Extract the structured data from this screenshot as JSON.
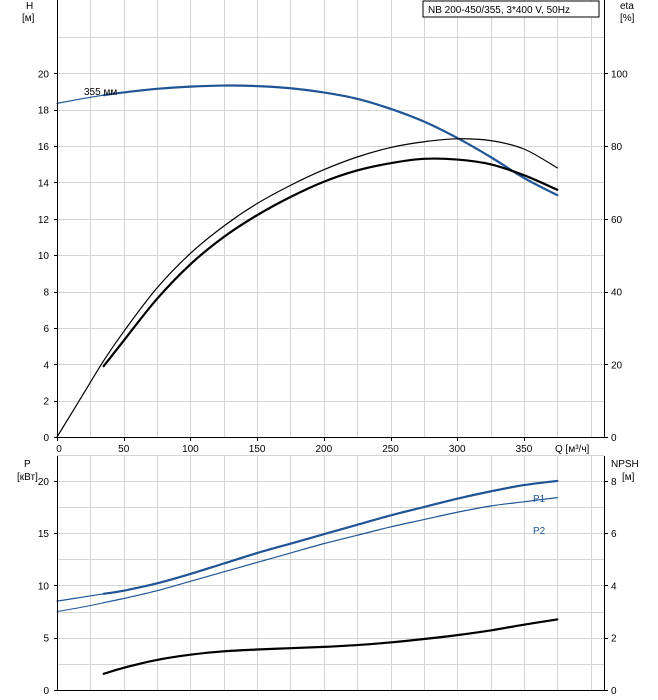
{
  "title_box": "NB 200-450/355, 3*400 V, 50Hz",
  "colors": {
    "blue": "#1f5596",
    "black": "#000000",
    "grid": "#d4d4d4"
  },
  "chart_data": [
    {
      "type": "line",
      "name": "head-efficiency",
      "ylabel_left": "H",
      "ylabel_left_unit": "[м]",
      "ylabel_right": "eta",
      "ylabel_right_unit": "[%]",
      "xlabel": "Q [м³/ч]",
      "xlim": [
        0,
        410
      ],
      "ylim": [
        0,
        22
      ],
      "y2lim": [
        0,
        110
      ],
      "xticks": [
        "0",
        "50",
        "100",
        "150",
        "200",
        "250",
        "300",
        "350"
      ],
      "xticks_values": [
        0,
        50,
        100,
        150,
        200,
        250,
        300,
        350
      ],
      "yticks_left": [
        "0",
        "2",
        "4",
        "6",
        "8",
        "10",
        "12",
        "14",
        "16",
        "18",
        "20"
      ],
      "yticks_left_values": [
        0,
        2,
        4,
        6,
        8,
        10,
        12,
        14,
        16,
        18,
        20
      ],
      "yticks_right": [
        "0",
        "20",
        "40",
        "60",
        "80",
        "100"
      ],
      "yticks_right_values": [
        0,
        20,
        40,
        60,
        80,
        100
      ],
      "annotation": "355 мм",
      "grid": true,
      "series": [
        {
          "name": "head-thin",
          "color": "#1f5596",
          "width": 1.2,
          "x": [
            0,
            20,
            35
          ],
          "y": [
            18.35,
            18.62,
            18.8
          ]
        },
        {
          "name": "head-355",
          "color": "#1f5596",
          "width": 2.2,
          "x": [
            35,
            50,
            75,
            100,
            125,
            150,
            175,
            200,
            225,
            250,
            275,
            300,
            325,
            350,
            375
          ],
          "y": [
            18.8,
            18.95,
            19.15,
            19.27,
            19.33,
            19.3,
            19.18,
            18.95,
            18.6,
            18.05,
            17.35,
            16.45,
            15.4,
            14.25,
            13.3
          ]
        },
        {
          "name": "eta-thin",
          "color": "#000000",
          "width": 1.2,
          "x": [
            0,
            20,
            35,
            50,
            75,
            100,
            125,
            150,
            175,
            200,
            225,
            250,
            275,
            300,
            325,
            350,
            375
          ],
          "y": [
            0,
            12,
            21,
            29,
            41,
            50.5,
            58,
            64.2,
            69.2,
            73.5,
            77,
            79.6,
            81.2,
            82,
            81.5,
            79.2,
            74
          ]
        },
        {
          "name": "eta-thick",
          "color": "#000000",
          "width": 2.2,
          "x": [
            35,
            50,
            75,
            100,
            125,
            150,
            175,
            200,
            225,
            250,
            275,
            300,
            325,
            350,
            375
          ],
          "y": [
            19.5,
            26.5,
            38,
            47.5,
            55,
            61,
            66,
            70.2,
            73.3,
            75.3,
            76.5,
            76.3,
            75,
            72,
            68
          ]
        }
      ]
    },
    {
      "type": "line",
      "name": "power-npsh",
      "ylabel_left": "P",
      "ylabel_left_unit": "[кВт]",
      "ylabel_right": "NPSH",
      "ylabel_right_unit": "[м]",
      "xlim": [
        0,
        410
      ],
      "ylim": [
        0,
        22
      ],
      "y2lim": [
        0,
        8.8
      ],
      "yticks_left": [
        "0",
        "5",
        "10",
        "15",
        "20"
      ],
      "yticks_left_values": [
        0,
        5,
        10,
        15,
        20
      ],
      "yticks_right": [
        "0",
        "2",
        "4",
        "6",
        "8"
      ],
      "yticks_right_values": [
        0,
        2,
        4,
        6,
        8
      ],
      "grid": true,
      "series": [
        {
          "name": "P1-thin",
          "color": "#1f5596",
          "width": 1.2,
          "x": [
            0,
            20,
            35
          ],
          "y": [
            8.5,
            8.9,
            9.2
          ]
        },
        {
          "name": "P1",
          "label": "P1",
          "color": "#1f5596",
          "width": 2.2,
          "x": [
            35,
            50,
            75,
            100,
            125,
            150,
            175,
            200,
            225,
            250,
            275,
            300,
            325,
            350,
            375
          ],
          "y": [
            9.2,
            9.5,
            10.2,
            11.1,
            12.1,
            13.1,
            14.0,
            14.9,
            15.8,
            16.7,
            17.5,
            18.3,
            19.0,
            19.6,
            20.0
          ]
        },
        {
          "name": "P2-thin",
          "color": "#1f5596",
          "width": 1.0,
          "x": [
            0,
            20,
            35
          ],
          "y": [
            7.5,
            7.95,
            8.35
          ]
        },
        {
          "name": "P2",
          "label": "P2",
          "color": "#1f5596",
          "width": 1.2,
          "x": [
            35,
            50,
            75,
            100,
            125,
            150,
            175,
            200,
            225,
            250,
            275,
            300,
            325,
            350,
            375
          ],
          "y": [
            8.35,
            8.75,
            9.5,
            10.4,
            11.3,
            12.2,
            13.1,
            14.0,
            14.8,
            15.6,
            16.3,
            17.0,
            17.6,
            18.0,
            18.4
          ]
        },
        {
          "name": "NPSH",
          "color": "#000000",
          "width": 2.2,
          "axis": "right",
          "x": [
            35,
            50,
            75,
            100,
            125,
            150,
            175,
            200,
            225,
            250,
            275,
            300,
            325,
            350,
            375
          ],
          "y": [
            0.62,
            0.85,
            1.15,
            1.35,
            1.48,
            1.55,
            1.6,
            1.65,
            1.72,
            1.82,
            1.95,
            2.1,
            2.28,
            2.5,
            2.7
          ]
        }
      ]
    }
  ]
}
